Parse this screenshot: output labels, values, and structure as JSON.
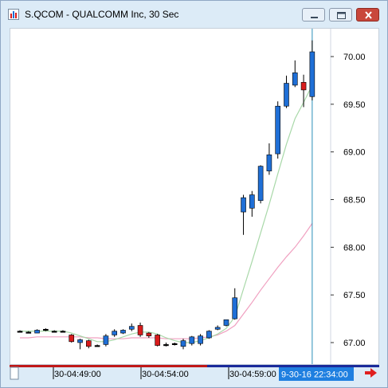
{
  "window": {
    "title": "S.QCOM - QUALCOMM Inc, 30 Sec",
    "buttons": [
      "minimize",
      "maximize",
      "close"
    ]
  },
  "colors": {
    "up_candle": "#1f6fd6",
    "down_candle": "#d91c1c",
    "doji": "#000000",
    "ma_fast": "#a8d8a8",
    "ma_slow": "#f0a0c0",
    "cursor_line": "#2a8fb8",
    "time_label_bg": "#1f7fe0",
    "scroll_arrow": "#e02020"
  },
  "chart_data": {
    "type": "candlestick",
    "ylim": [
      66.8,
      70.2
    ],
    "yticks": [
      "70.00",
      "69.50",
      "69.00",
      "68.50",
      "68.00",
      "67.50",
      "67.00"
    ],
    "xticks": [
      "30-04:49:00",
      "30-04:54:00",
      "30-04:59:00"
    ],
    "cursor_time": "9-30-16 22:34:00",
    "candles": [
      {
        "o": 67.12,
        "h": 67.13,
        "l": 67.11,
        "c": 67.12
      },
      {
        "o": 67.11,
        "h": 67.12,
        "l": 67.1,
        "c": 67.1
      },
      {
        "o": 67.1,
        "h": 67.14,
        "l": 67.1,
        "c": 67.13
      },
      {
        "o": 67.14,
        "h": 67.15,
        "l": 67.12,
        "c": 67.13
      },
      {
        "o": 67.12,
        "h": 67.13,
        "l": 67.11,
        "c": 67.12
      },
      {
        "o": 67.12,
        "h": 67.13,
        "l": 67.11,
        "c": 67.12
      },
      {
        "o": 67.08,
        "h": 67.09,
        "l": 67.0,
        "c": 67.01
      },
      {
        "o": 67.0,
        "h": 67.04,
        "l": 66.93,
        "c": 67.03
      },
      {
        "o": 67.02,
        "h": 67.03,
        "l": 66.94,
        "c": 66.96
      },
      {
        "o": 66.97,
        "h": 66.98,
        "l": 66.96,
        "c": 66.97
      },
      {
        "o": 66.98,
        "h": 67.09,
        "l": 66.96,
        "c": 67.07
      },
      {
        "o": 67.08,
        "h": 67.14,
        "l": 67.06,
        "c": 67.12
      },
      {
        "o": 67.1,
        "h": 67.14,
        "l": 67.09,
        "c": 67.13
      },
      {
        "o": 67.14,
        "h": 67.2,
        "l": 67.12,
        "c": 67.17
      },
      {
        "o": 67.18,
        "h": 67.21,
        "l": 67.06,
        "c": 67.08
      },
      {
        "o": 67.1,
        "h": 67.11,
        "l": 67.05,
        "c": 67.07
      },
      {
        "o": 67.08,
        "h": 67.09,
        "l": 66.96,
        "c": 66.97
      },
      {
        "o": 66.98,
        "h": 67.0,
        "l": 66.96,
        "c": 66.98
      },
      {
        "o": 66.99,
        "h": 67.0,
        "l": 66.97,
        "c": 66.98
      },
      {
        "o": 66.96,
        "h": 67.04,
        "l": 66.93,
        "c": 67.02
      },
      {
        "o": 66.99,
        "h": 67.07,
        "l": 66.97,
        "c": 67.06
      },
      {
        "o": 66.99,
        "h": 67.09,
        "l": 66.97,
        "c": 67.07
      },
      {
        "o": 67.05,
        "h": 67.13,
        "l": 67.04,
        "c": 67.12
      },
      {
        "o": 67.14,
        "h": 67.18,
        "l": 67.13,
        "c": 67.16
      },
      {
        "o": 67.18,
        "h": 67.24,
        "l": 67.17,
        "c": 67.24
      },
      {
        "o": 67.25,
        "h": 67.57,
        "l": 67.24,
        "c": 67.47
      },
      {
        "o": 68.37,
        "h": 68.55,
        "l": 68.13,
        "c": 68.52
      },
      {
        "o": 68.41,
        "h": 68.59,
        "l": 68.32,
        "c": 68.55
      },
      {
        "o": 68.49,
        "h": 68.86,
        "l": 68.46,
        "c": 68.85
      },
      {
        "o": 68.8,
        "h": 69.09,
        "l": 68.76,
        "c": 68.97
      },
      {
        "o": 68.98,
        "h": 69.53,
        "l": 68.93,
        "c": 69.48
      },
      {
        "o": 69.48,
        "h": 69.8,
        "l": 69.46,
        "c": 69.72
      },
      {
        "o": 69.7,
        "h": 69.96,
        "l": 69.68,
        "c": 69.83
      },
      {
        "o": 69.73,
        "h": 69.81,
        "l": 69.47,
        "c": 69.65
      },
      {
        "o": 69.58,
        "h": 70.17,
        "l": 69.54,
        "c": 70.05
      }
    ],
    "ma_fast": [
      67.12,
      67.12,
      67.12,
      67.12,
      67.12,
      67.12,
      67.1,
      67.07,
      67.04,
      67.01,
      67.01,
      67.03,
      67.06,
      67.09,
      67.11,
      67.11,
      67.09,
      67.05,
      67.02,
      67.0,
      67.0,
      67.02,
      67.05,
      67.09,
      67.15,
      67.27,
      67.56,
      67.85,
      68.15,
      68.45,
      68.77,
      69.08,
      69.35,
      69.52,
      69.7
    ],
    "ma_slow": [
      67.05,
      67.05,
      67.06,
      67.06,
      67.06,
      67.06,
      67.06,
      67.06,
      67.05,
      67.05,
      67.04,
      67.04,
      67.04,
      67.05,
      67.05,
      67.05,
      67.05,
      67.04,
      67.04,
      67.04,
      67.04,
      67.05,
      67.06,
      67.08,
      67.12,
      67.18,
      67.3,
      67.42,
      67.55,
      67.67,
      67.79,
      67.9,
      68.0,
      68.12,
      68.25
    ]
  }
}
